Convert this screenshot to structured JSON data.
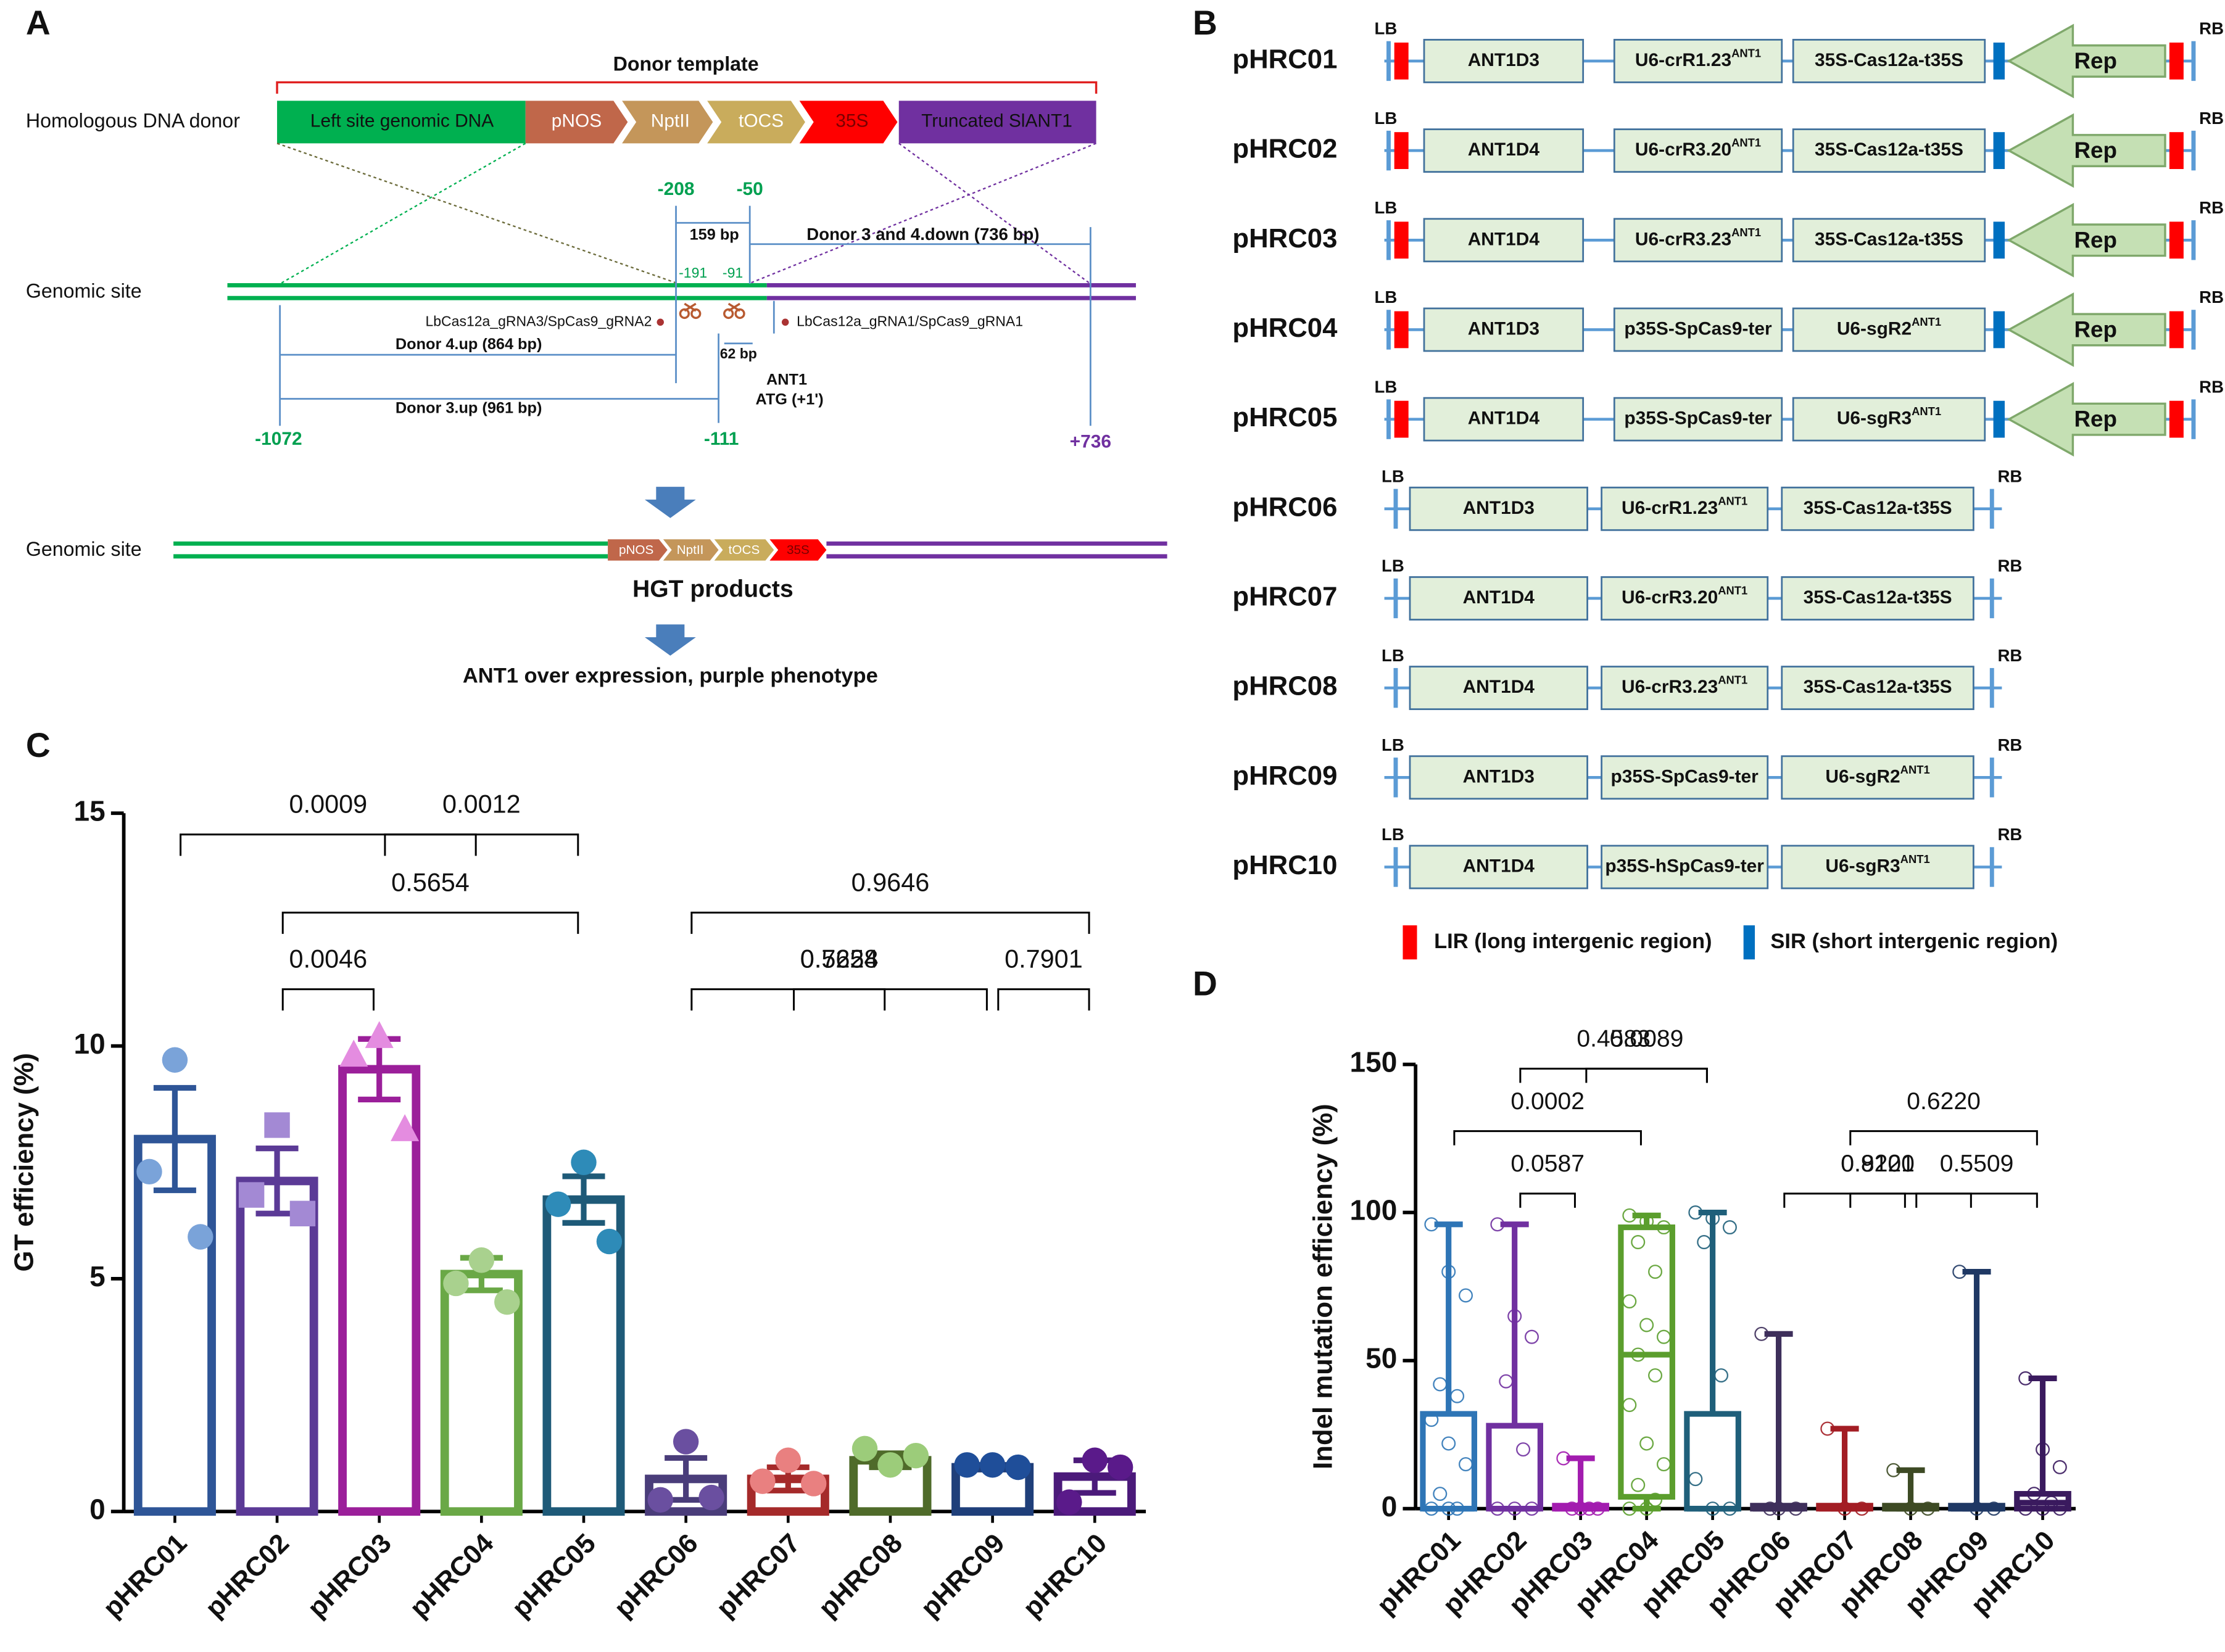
{
  "panel_labels": [
    "A",
    "B",
    "C",
    "D"
  ],
  "diagram_a": {
    "donor": {
      "title": "Donor template",
      "label": "Homologous DNA donor",
      "segments": [
        "Left site genomic DNA",
        "pNOS",
        "NptII",
        "tOCS",
        "35S",
        "Truncated SlANT1"
      ]
    },
    "genomic_site": "Genomic site",
    "positions": [
      "-208",
      "-50",
      "-191",
      "-91",
      "-1072",
      "-111",
      "+736"
    ],
    "spans": [
      "159 bp",
      "Donor 3 and 4.down (736 bp)",
      "Donor 4.up (864 bp)",
      "62 bp",
      "Donor 3.up (961 bp)"
    ],
    "guides": [
      "LbCas12a_gRNA3/SpCas9_gRNA2",
      "LbCas12a_gRNA1/SpCas9_gRNA1"
    ],
    "start": [
      "ANT1",
      "ATG (+1')"
    ],
    "product": {
      "label": "Genomic site",
      "segments": [
        "pNOS",
        "NptII",
        "tOCS",
        "35S"
      ],
      "title": "HGT products"
    },
    "outcome": "ANT1 over expression, purple phenotype"
  },
  "diagram_b": {
    "constructs": [
      {
        "name": "pHRC01",
        "lb": "LB",
        "rb": "RB",
        "rep": "Rep",
        "modules": [
          {
            "text": "ANT1D3"
          },
          {
            "text": "U6-crR1.23",
            "sup": "ANT1"
          },
          {
            "text": "35S-Cas12a-t35S"
          }
        ]
      },
      {
        "name": "pHRC02",
        "lb": "LB",
        "rb": "RB",
        "rep": "Rep",
        "modules": [
          {
            "text": "ANT1D4"
          },
          {
            "text": "U6-crR3.20",
            "sup": "ANT1"
          },
          {
            "text": "35S-Cas12a-t35S"
          }
        ]
      },
      {
        "name": "pHRC03",
        "lb": "LB",
        "rb": "RB",
        "rep": "Rep",
        "modules": [
          {
            "text": "ANT1D4"
          },
          {
            "text": "U6-crR3.23",
            "sup": "ANT1"
          },
          {
            "text": "35S-Cas12a-t35S"
          }
        ]
      },
      {
        "name": "pHRC04",
        "lb": "LB",
        "rb": "RB",
        "rep": "Rep",
        "modules": [
          {
            "text": "ANT1D3"
          },
          {
            "text": "p35S-SpCas9-ter"
          },
          {
            "text": "U6-sgR2",
            "sup": "ANT1"
          }
        ]
      },
      {
        "name": "pHRC05",
        "lb": "LB",
        "rb": "RB",
        "rep": "Rep",
        "modules": [
          {
            "text": "ANT1D4"
          },
          {
            "text": "p35S-SpCas9-ter"
          },
          {
            "text": "U6-sgR3",
            "sup": "ANT1"
          }
        ]
      },
      {
        "name": "pHRC06",
        "lb": "LB",
        "rb": "RB",
        "modules": [
          {
            "text": "ANT1D3"
          },
          {
            "text": "U6-crR1.23",
            "sup": "ANT1"
          },
          {
            "text": "35S-Cas12a-t35S"
          }
        ]
      },
      {
        "name": "pHRC07",
        "lb": "LB",
        "rb": "RB",
        "modules": [
          {
            "text": "ANT1D4"
          },
          {
            "text": "U6-crR3.20",
            "sup": "ANT1"
          },
          {
            "text": "35S-Cas12a-t35S"
          }
        ]
      },
      {
        "name": "pHRC08",
        "lb": "LB",
        "rb": "RB",
        "modules": [
          {
            "text": "ANT1D4"
          },
          {
            "text": "U6-crR3.23",
            "sup": "ANT1"
          },
          {
            "text": "35S-Cas12a-t35S"
          }
        ]
      },
      {
        "name": "pHRC09",
        "lb": "LB",
        "rb": "RB",
        "modules": [
          {
            "text": "ANT1D3"
          },
          {
            "text": "p35S-SpCas9-ter"
          },
          {
            "text": "U6-sgR2",
            "sup": "ANT1"
          }
        ]
      },
      {
        "name": "pHRC10",
        "lb": "LB",
        "rb": "RB",
        "modules": [
          {
            "text": "ANT1D4"
          },
          {
            "text": "p35S-hSpCas9-ter"
          },
          {
            "text": "U6-sgR3",
            "sup": "ANT1"
          }
        ]
      }
    ],
    "legend": [
      "LIR (long intergenic region)",
      "SIR (short intergenic region)"
    ]
  },
  "chart_data": [
    {
      "type": "bar",
      "ylabel": "GT efficiency (%)",
      "categories": [
        "pHRC01",
        "pHRC02",
        "pHRC03",
        "pHRC04",
        "pHRC05",
        "pHRC06",
        "pHRC07",
        "pHRC08",
        "pHRC09",
        "pHRC10"
      ],
      "values": [
        8.0,
        7.1,
        9.5,
        5.1,
        6.7,
        0.7,
        0.7,
        1.1,
        0.95,
        0.75
      ],
      "errors": [
        1.1,
        0.7,
        0.65,
        0.35,
        0.5,
        0.45,
        0.25,
        0.15,
        0.05,
        0.35
      ],
      "points": [
        [
          9.7,
          7.3,
          5.9
        ],
        [
          8.3,
          6.8,
          6.4
        ],
        [
          10.2,
          9.8,
          8.2
        ],
        [
          5.4,
          4.9,
          4.5
        ],
        [
          7.5,
          6.6,
          5.8
        ],
        [
          1.5,
          0.25,
          0.3
        ],
        [
          1.1,
          0.65,
          0.6
        ],
        [
          1.0,
          1.35,
          1.2
        ],
        [
          1.0,
          1.0,
          0.95
        ],
        [
          1.1,
          0.2,
          0.95
        ]
      ],
      "markers": [
        "circle",
        "square",
        "triangle",
        "circle",
        "circle",
        "circle",
        "circle",
        "circle",
        "circle",
        "circle"
      ],
      "colors": [
        "#2e5597",
        "#5b3a96",
        "#9b1f9a",
        "#6aa846",
        "#1e5a78",
        "#4a3d7a",
        "#a52a2a",
        "#4f6b2a",
        "#1f3f7a",
        "#4b1a7a"
      ],
      "point_colors": [
        "#7aa3d9",
        "#a389d4",
        "#e48ce0",
        "#a9d18e",
        "#2e8bb8",
        "#6a4fa0",
        "#e98080",
        "#9ccc7a",
        "#1f4e99",
        "#5a1a8a"
      ],
      "ylim": [
        0,
        15
      ],
      "yticks": [
        0,
        5,
        10,
        15
      ],
      "annotations": [
        {
          "text": "0.0009",
          "from": "pHRC01",
          "to": "pHRC04"
        },
        {
          "text": "0.5654",
          "from": "pHRC02",
          "to": "pHRC05"
        },
        {
          "text": "0.0046",
          "from": "pHRC02",
          "to": "pHRC03"
        },
        {
          "text": "0.0012",
          "from": "pHRC03",
          "to": "pHRC05"
        },
        {
          "text": "0.9646",
          "from": "pHRC06",
          "to": "pHRC10"
        },
        {
          "text": "0.7228",
          "from": "pHRC06",
          "to": "pHRC09"
        },
        {
          "text": "0.5654",
          "from": "pHRC07",
          "to": "pHRC08"
        },
        {
          "text": "0.7901",
          "from": "pHRC09",
          "to": "pHRC10"
        }
      ]
    },
    {
      "type": "box",
      "ylabel": "Indel mutation efficiency (%)",
      "categories": [
        "pHRC01",
        "pHRC02",
        "pHRC03",
        "pHRC04",
        "pHRC05",
        "pHRC06",
        "pHRC07",
        "pHRC08",
        "pHRC09",
        "pHRC10"
      ],
      "min": [
        0,
        0,
        0,
        0,
        0,
        0,
        0,
        0,
        0,
        0
      ],
      "q1": [
        0,
        0,
        0,
        4,
        0,
        0,
        0,
        0,
        0,
        0
      ],
      "median": [
        0,
        0,
        0,
        52,
        0,
        0,
        0,
        0,
        0,
        2
      ],
      "q3": [
        32,
        28,
        1,
        95,
        32,
        1,
        1,
        1,
        1,
        5
      ],
      "max": [
        96,
        96,
        17,
        99,
        100,
        59,
        27,
        13,
        80,
        44
      ],
      "points": [
        [
          96,
          80,
          72,
          42,
          38,
          30,
          22,
          15,
          5,
          0,
          0,
          0
        ],
        [
          96,
          65,
          58,
          43,
          20,
          0,
          0,
          0
        ],
        [
          17,
          0,
          0,
          0,
          0
        ],
        [
          99,
          97,
          95,
          90,
          80,
          70,
          62,
          58,
          52,
          45,
          35,
          22,
          15,
          8,
          3,
          0,
          0
        ],
        [
          100,
          98,
          95,
          90,
          45,
          10,
          0,
          0
        ],
        [
          59,
          0,
          0,
          0
        ],
        [
          27,
          0,
          0
        ],
        [
          13,
          0,
          0
        ],
        [
          80,
          0,
          0
        ],
        [
          44,
          20,
          14,
          5,
          2,
          0,
          0,
          0
        ]
      ],
      "colors": [
        "#2e75b6",
        "#7030a0",
        "#a21caf",
        "#5b9e2d",
        "#1f5f7a",
        "#3e2f5b",
        "#a31d24",
        "#3d4a24",
        "#1f3864",
        "#3a1a5e"
      ],
      "ylim": [
        0,
        150
      ],
      "yticks": [
        0,
        50,
        100,
        150
      ],
      "annotations": [
        {
          "text": "0.4583",
          "from": "pHRC02",
          "to": "pHRC05"
        },
        {
          "text": "0.0002",
          "from": "pHRC01",
          "to": "pHRC04"
        },
        {
          "text": "0.0587",
          "from": "pHRC02",
          "to": "pHRC03"
        },
        {
          "text": "0.0089",
          "from": "pHRC03",
          "to": "pHRC05"
        },
        {
          "text": "0.6220",
          "from": "pHRC07",
          "to": "pHRC10"
        },
        {
          "text": "0.8120",
          "from": "pHRC06",
          "to": "pHRC09"
        },
        {
          "text": "0.9201",
          "from": "pHRC07",
          "to": "pHRC08"
        },
        {
          "text": "0.5509",
          "from": "pHRC08",
          "to": "pHRC10"
        }
      ]
    }
  ]
}
